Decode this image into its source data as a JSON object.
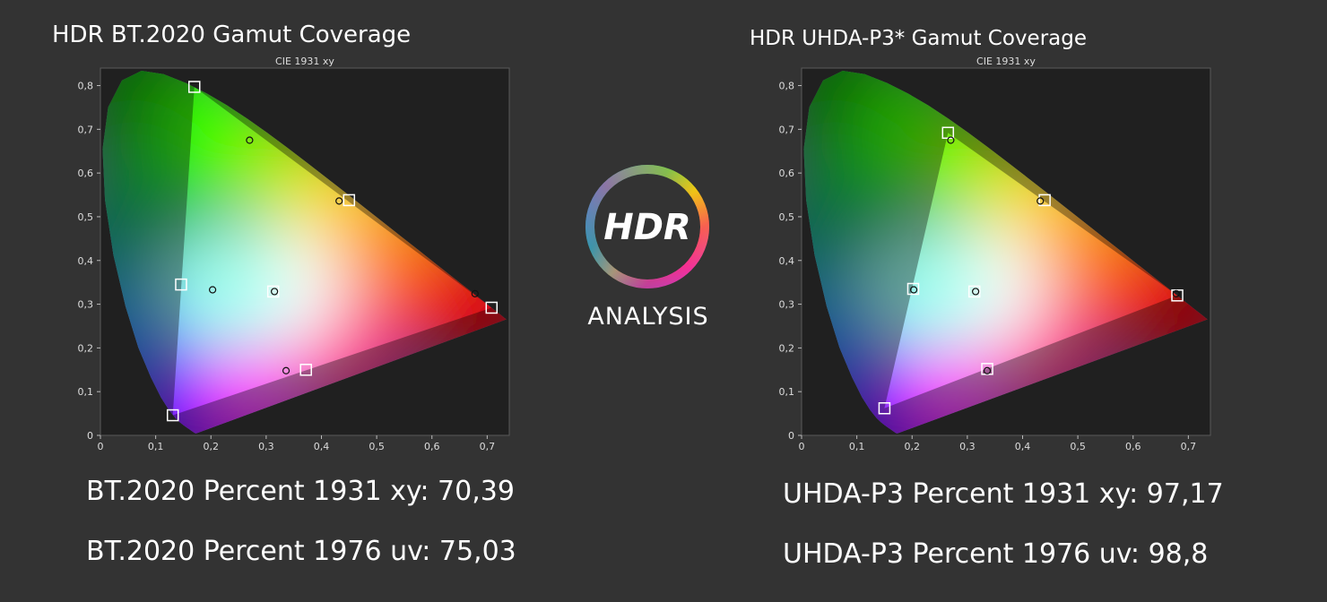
{
  "charts": [
    {
      "title": "HDR BT.2020  Gamut Coverage",
      "stats": [
        {
          "label": "BT.2020 Percent 1931 xy:",
          "value": "70,39"
        },
        {
          "label": "BT.2020 Percent 1976 uv:",
          "value": "75,03"
        }
      ]
    },
    {
      "title": "HDR UHDA-P3* Gamut Coverage",
      "stats": [
        {
          "label": "UHDA-P3 Percent 1931 xy:",
          "value": "97,17"
        },
        {
          "label": "UHDA-P3 Percent 1976 uv:",
          "value": "98,8"
        }
      ]
    }
  ],
  "logo": {
    "mark": "HDR",
    "word": "ANALYSIS"
  },
  "chart_data": [
    {
      "type": "scatter",
      "title": "CIE 1931 xy",
      "xlim": [
        0,
        0.74
      ],
      "ylim": [
        0,
        0.84
      ],
      "xticks": [
        "0",
        "0,1",
        "0,2",
        "0,3",
        "0,4",
        "0,5",
        "0,6",
        "0,7"
      ],
      "yticks": [
        "0",
        "0,1",
        "0,2",
        "0,3",
        "0,4",
        "0,5",
        "0,6",
        "0,7",
        "0,8"
      ],
      "grid": false,
      "series": [
        {
          "marker": "square",
          "points": [
            {
              "x": 0.17,
              "y": 0.797
            },
            {
              "x": 0.131,
              "y": 0.046
            },
            {
              "x": 0.708,
              "y": 0.292
            },
            {
              "x": 0.146,
              "y": 0.345
            },
            {
              "x": 0.45,
              "y": 0.538
            },
            {
              "x": 0.372,
              "y": 0.15
            },
            {
              "x": 0.3127,
              "y": 0.329
            }
          ]
        },
        {
          "marker": "circle",
          "points": [
            {
              "x": 0.27,
              "y": 0.675
            },
            {
              "x": 0.203,
              "y": 0.333
            },
            {
              "x": 0.432,
              "y": 0.536
            },
            {
              "x": 0.315,
              "y": 0.329
            },
            {
              "x": 0.678,
              "y": 0.324
            },
            {
              "x": 0.336,
              "y": 0.148
            }
          ]
        }
      ]
    },
    {
      "type": "scatter",
      "title": "CIE 1931 xy",
      "xlim": [
        0,
        0.74
      ],
      "ylim": [
        0,
        0.84
      ],
      "xticks": [
        "0",
        "0,1",
        "0,2",
        "0,3",
        "0,4",
        "0,5",
        "0,6",
        "0,7"
      ],
      "yticks": [
        "0",
        "0,1",
        "0,2",
        "0,3",
        "0,4",
        "0,5",
        "0,6",
        "0,7",
        "0,8"
      ],
      "grid": false,
      "series": [
        {
          "marker": "square",
          "points": [
            {
              "x": 0.265,
              "y": 0.692
            },
            {
              "x": 0.15,
              "y": 0.062
            },
            {
              "x": 0.68,
              "y": 0.32
            },
            {
              "x": 0.202,
              "y": 0.335
            },
            {
              "x": 0.44,
              "y": 0.538
            },
            {
              "x": 0.336,
              "y": 0.152
            },
            {
              "x": 0.3127,
              "y": 0.329
            }
          ]
        },
        {
          "marker": "circle",
          "points": [
            {
              "x": 0.27,
              "y": 0.675
            },
            {
              "x": 0.203,
              "y": 0.333
            },
            {
              "x": 0.432,
              "y": 0.536
            },
            {
              "x": 0.315,
              "y": 0.329
            },
            {
              "x": 0.678,
              "y": 0.324
            },
            {
              "x": 0.336,
              "y": 0.148
            }
          ]
        }
      ]
    }
  ]
}
